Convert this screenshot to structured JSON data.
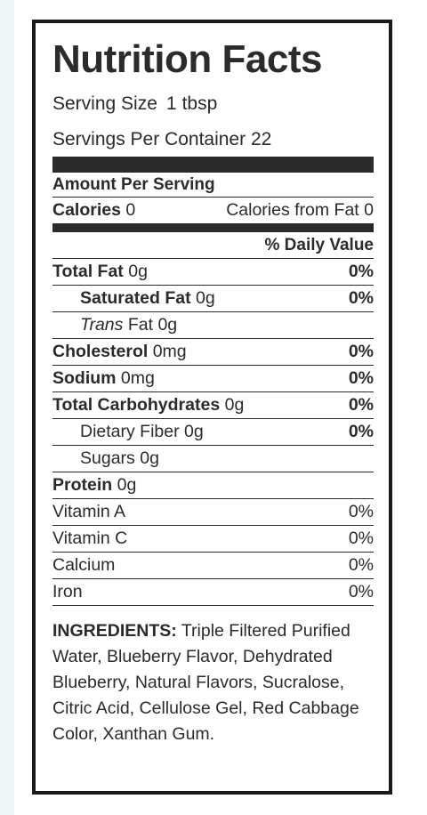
{
  "label": {
    "title": "Nutrition Facts",
    "serving_size_label": "Serving Size",
    "serving_size_value": "1",
    "serving_size_unit": "tbsp",
    "servings_per_container": "Servings Per Container 22",
    "amount_per_serving": "Amount Per Serving",
    "calories_label": "Calories",
    "calories_value": "0",
    "calories_from_fat": "Calories from Fat 0",
    "daily_value_header": "% Daily Value",
    "nutrients": [
      {
        "name": "Total Fat",
        "amount": "0g",
        "dv": "0%"
      },
      {
        "name": "Saturated Fat",
        "amount": "0g",
        "dv": "0%"
      },
      {
        "name": "Trans",
        "name_rest": "Fat",
        "amount": "0g",
        "dv": ""
      },
      {
        "name": "Cholesterol",
        "amount": "0mg",
        "dv": "0%"
      },
      {
        "name": "Sodium",
        "amount": "0mg",
        "dv": "0%"
      },
      {
        "name": "Total Carbohydrates",
        "amount": "0g",
        "dv": "0%"
      },
      {
        "name": "Dietary Fiber",
        "amount": "0g",
        "dv": "0%"
      },
      {
        "name": "Sugars",
        "amount": "0g",
        "dv": ""
      },
      {
        "name": "Protein",
        "amount": "0g",
        "dv": ""
      }
    ],
    "vitamins": [
      {
        "name": "Vitamin A",
        "dv": "0%"
      },
      {
        "name": "Vitamin C",
        "dv": "0%"
      },
      {
        "name": "Calcium",
        "dv": "0%"
      },
      {
        "name": "Iron",
        "dv": "0%"
      }
    ],
    "ingredients_heading": "INGREDIENTS:",
    "ingredients_text": "Triple Filtered Purified Water, Blueberry Flavor, Dehydrated Blueberry, Natural Flavors, Sucralose, Citric Acid, Cellulose Gel, Red Cabbage Color, Xanthan Gum."
  }
}
